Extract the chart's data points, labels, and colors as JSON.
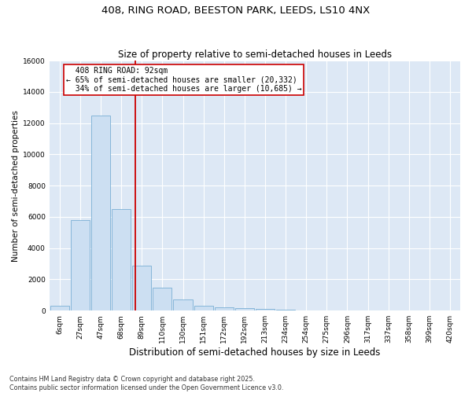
{
  "title_line1": "408, RING ROAD, BEESTON PARK, LEEDS, LS10 4NX",
  "title_line2": "Size of property relative to semi-detached houses in Leeds",
  "xlabel": "Distribution of semi-detached houses by size in Leeds",
  "ylabel": "Number of semi-detached properties",
  "footnote": "Contains HM Land Registry data © Crown copyright and database right 2025.\nContains public sector information licensed under the Open Government Licence v3.0.",
  "bar_color": "#ccdff2",
  "bar_edge_color": "#7aafd4",
  "categories": [
    "6sqm",
    "27sqm",
    "47sqm",
    "68sqm",
    "89sqm",
    "110sqm",
    "130sqm",
    "151sqm",
    "172sqm",
    "192sqm",
    "213sqm",
    "234sqm",
    "254sqm",
    "275sqm",
    "296sqm",
    "317sqm",
    "337sqm",
    "358sqm",
    "399sqm",
    "420sqm"
  ],
  "values": [
    300,
    5800,
    12500,
    6500,
    2900,
    1450,
    700,
    300,
    200,
    150,
    100,
    50,
    30,
    20,
    10,
    5,
    3,
    2,
    1,
    1
  ],
  "property_size_label": "408 RING ROAD: 92sqm",
  "pct_smaller": 65,
  "count_smaller": 20332,
  "pct_larger": 34,
  "count_larger": 10685,
  "vline_color": "#cc0000",
  "annotation_box_color": "#cc0000",
  "ylim": [
    0,
    16000
  ],
  "yticks": [
    0,
    2000,
    4000,
    6000,
    8000,
    10000,
    12000,
    14000,
    16000
  ],
  "bg_color": "#dde8f5",
  "vline_x": 3.7,
  "grid_color": "#ffffff",
  "title_fontsize": 9.5,
  "subtitle_fontsize": 8.5,
  "ylabel_fontsize": 7.5,
  "xlabel_fontsize": 8.5,
  "tick_fontsize": 6.5,
  "annot_fontsize": 7.0,
  "footnote_fontsize": 5.8
}
